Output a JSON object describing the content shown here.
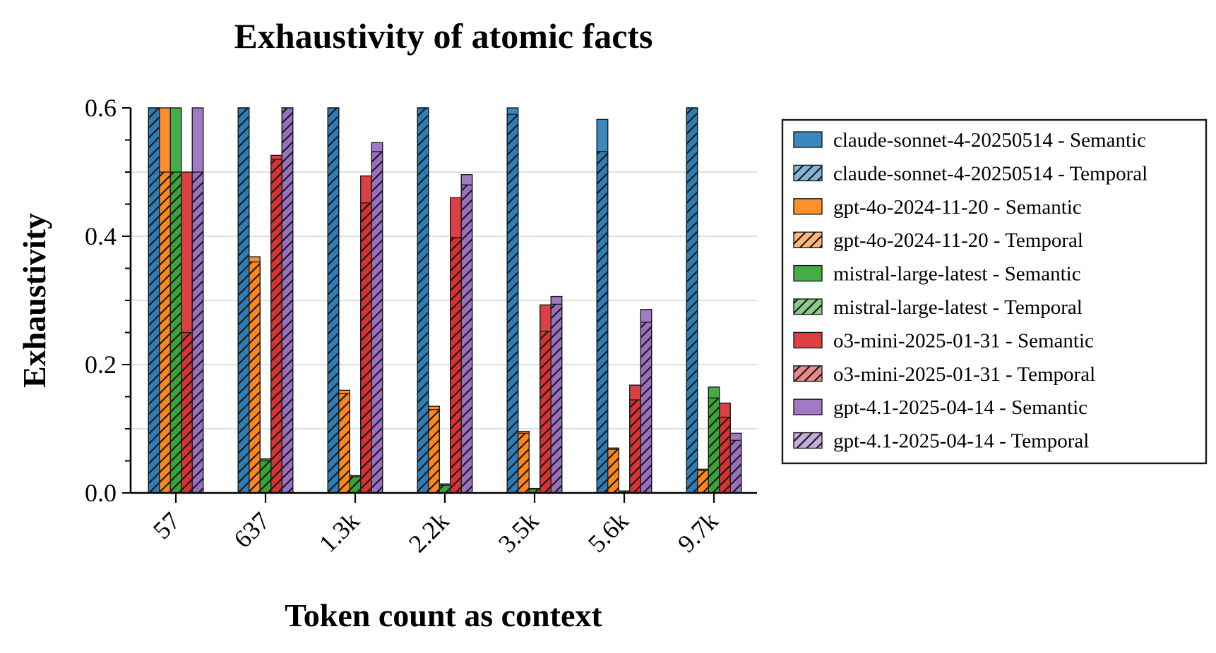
{
  "chart_data": {
    "type": "bar",
    "title": "Exhaustivity of atomic facts",
    "xlabel": "Token count as context",
    "ylabel": "Exhaustivity",
    "ylim": [
      0,
      0.6
    ],
    "yticks": [
      "0.0",
      "0.2",
      "0.4",
      "0.6"
    ],
    "categories": [
      "57",
      "637",
      "1.3k",
      "2.2k",
      "3.5k",
      "5.6k",
      "9.7k"
    ],
    "grid": "horizontal",
    "legend_position": "outside-right",
    "series": [
      {
        "model": "claude-sonnet-4-20250514",
        "color": "#1f77b4",
        "semantic": [
          0.6,
          0.6,
          0.6,
          0.6,
          0.6,
          0.582,
          0.6
        ],
        "temporal": [
          0.6,
          0.6,
          0.6,
          0.6,
          0.59,
          0.532,
          0.6
        ]
      },
      {
        "model": "gpt-4o-2024-11-20",
        "color": "#ff7f0e",
        "semantic": [
          0.6,
          0.368,
          0.16,
          0.135,
          0.096,
          0.07,
          0.037
        ],
        "temporal": [
          0.5,
          0.36,
          0.155,
          0.13,
          0.093,
          0.068,
          0.035
        ]
      },
      {
        "model": "mistral-large-latest",
        "color": "#2ca02c",
        "semantic": [
          0.6,
          0.053,
          0.027,
          0.014,
          0.007,
          0.003,
          0.165
        ],
        "temporal": [
          0.5,
          0.05,
          0.025,
          0.012,
          0.006,
          0.003,
          0.148
        ]
      },
      {
        "model": "o3-mini-2025-01-31",
        "color": "#d62728",
        "semantic": [
          0.5,
          0.526,
          0.494,
          0.46,
          0.293,
          0.168,
          0.14
        ],
        "temporal": [
          0.25,
          0.52,
          0.452,
          0.398,
          0.252,
          0.145,
          0.118
        ]
      },
      {
        "model": "gpt-4.1-2025-04-14",
        "color": "#9467bd",
        "semantic": [
          0.6,
          0.6,
          0.546,
          0.496,
          0.306,
          0.286,
          0.093
        ],
        "temporal": [
          0.5,
          0.6,
          0.532,
          0.48,
          0.294,
          0.266,
          0.082
        ]
      }
    ],
    "legend": [
      "claude-sonnet-4-20250514 - Semantic",
      "claude-sonnet-4-20250514 - Temporal",
      "gpt-4o-2024-11-20 - Semantic",
      "gpt-4o-2024-11-20 - Temporal",
      "mistral-large-latest - Semantic",
      "mistral-large-latest - Temporal",
      "o3-mini-2025-01-31 - Semantic",
      "o3-mini-2025-01-31 - Temporal",
      "gpt-4.1-2025-04-14 - Semantic",
      "gpt-4.1-2025-04-14 - Temporal"
    ]
  }
}
